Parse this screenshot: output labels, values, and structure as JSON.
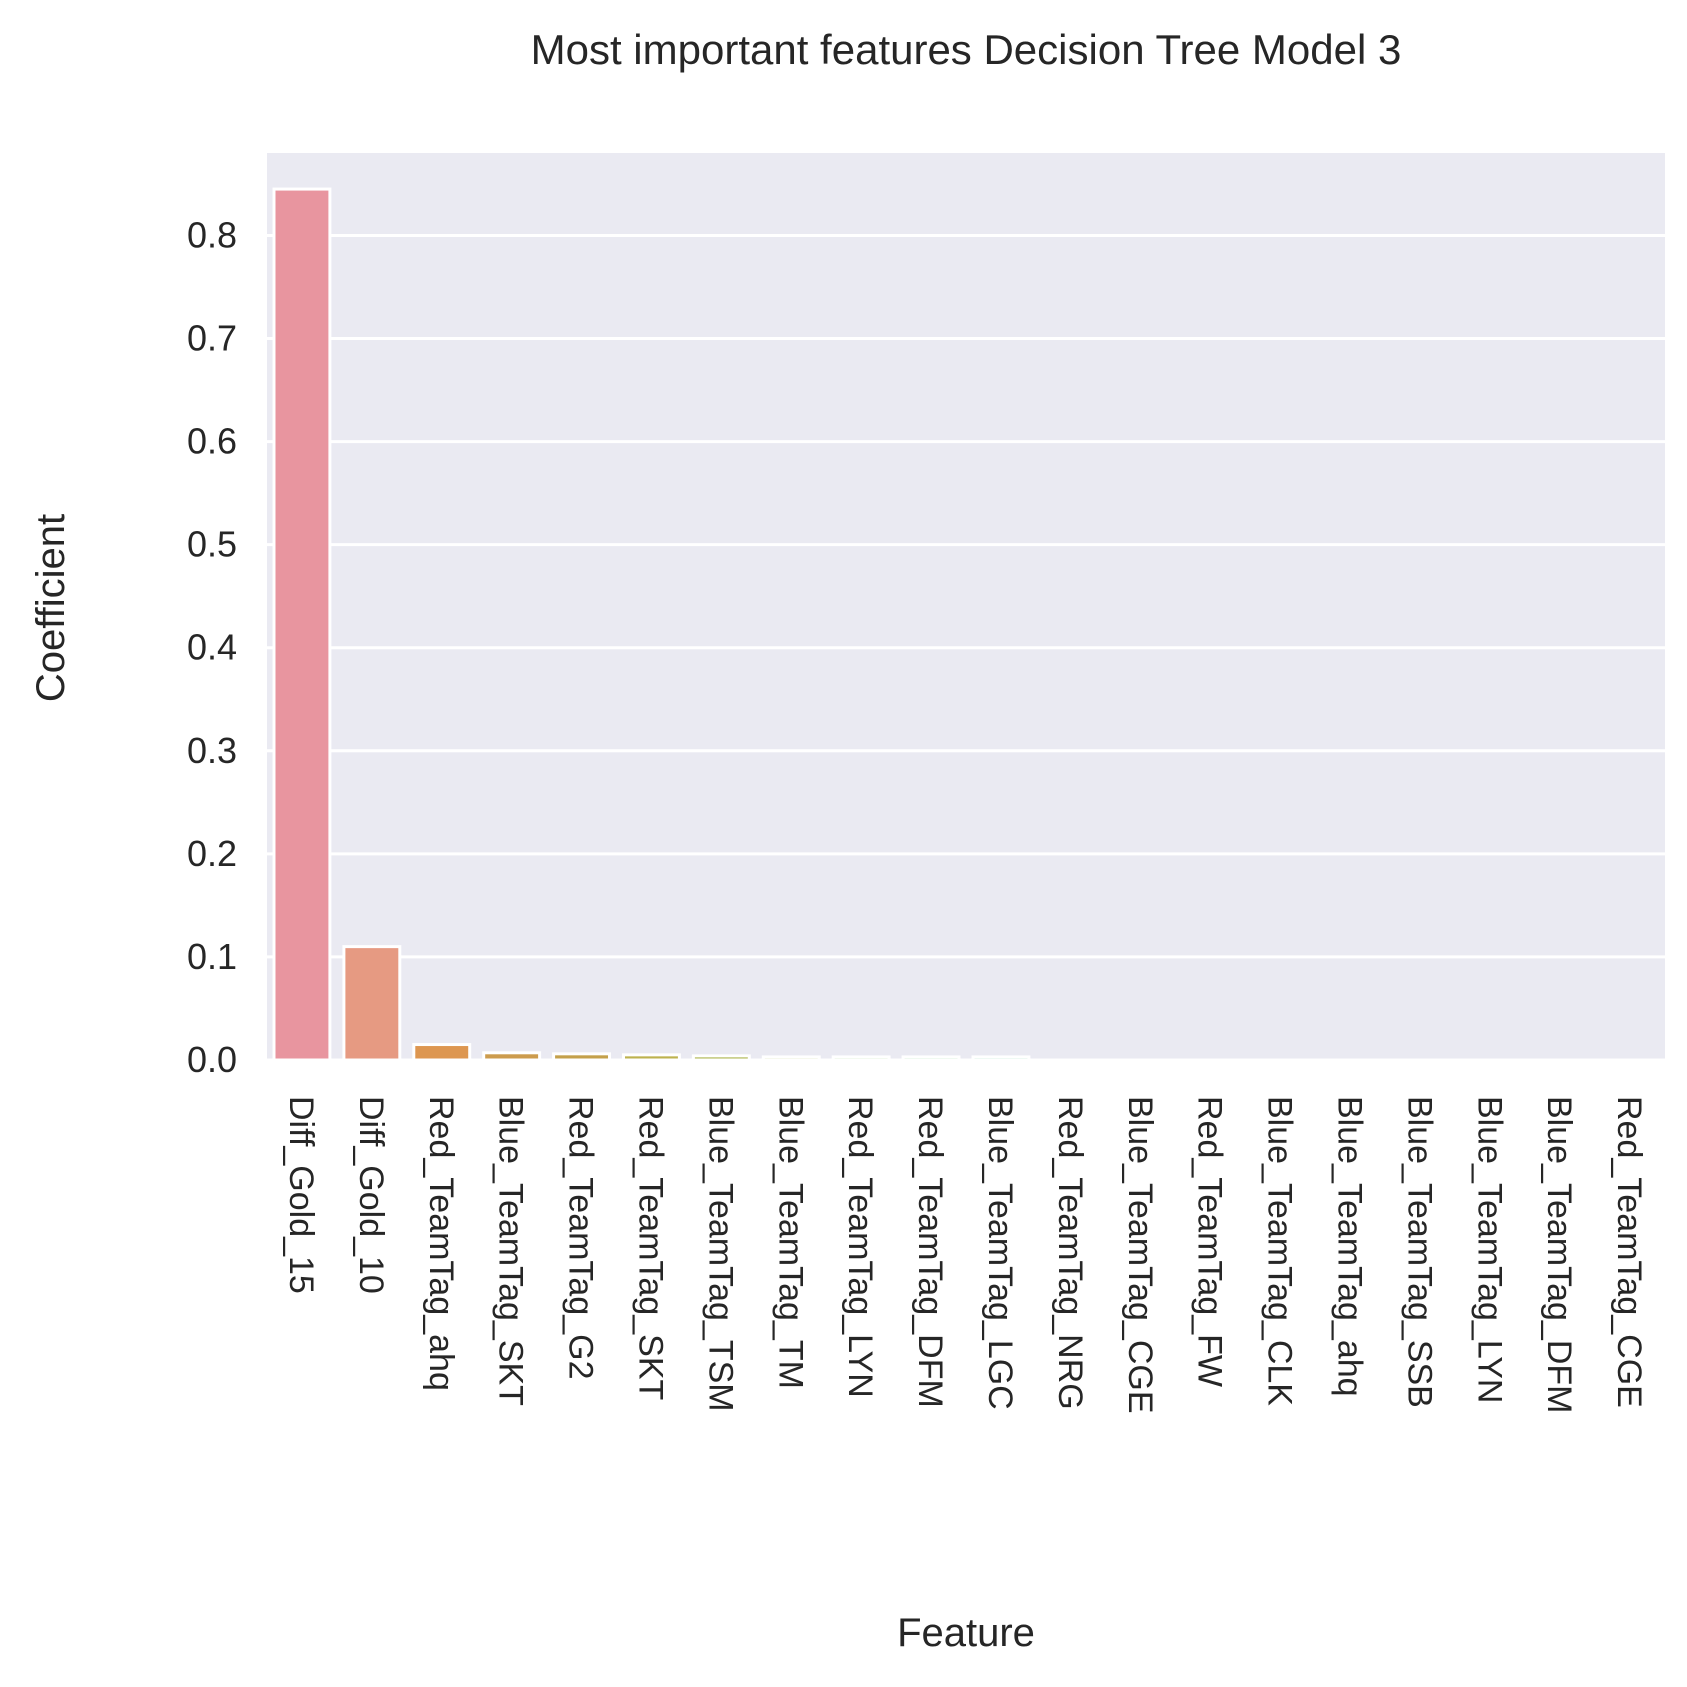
{
  "chart_data": {
    "type": "bar",
    "title": "Most important features Decision Tree Model 3",
    "xlabel": "Feature",
    "ylabel": "Coefficient",
    "ylim": [
      0,
      0.88
    ],
    "yticks": [
      "0.0",
      "0.1",
      "0.2",
      "0.3",
      "0.4",
      "0.5",
      "0.6",
      "0.7",
      "0.8"
    ],
    "grid": true,
    "background": "#eaeaf2",
    "categories": [
      "Diff_Gold_15",
      "Diff_Gold_10",
      "Red_TeamTag_ahq",
      "Blue_TeamTag_SKT",
      "Red_TeamTag_G2",
      "Red_TeamTag_SKT",
      "Blue_TeamTag_TSM",
      "Blue_TeamTag_TM",
      "Red_TeamTag_LYN",
      "Red_TeamTag_DFM",
      "Blue_TeamTag_LGC",
      "Red_TeamTag_NRG",
      "Blue_TeamTag_CGE",
      "Red_TeamTag_FW",
      "Blue_TeamTag_CLK",
      "Blue_TeamTag_ahq",
      "Blue_TeamTag_SSB",
      "Blue_TeamTag_LYN",
      "Blue_TeamTag_DFM",
      "Red_TeamTag_CGE"
    ],
    "values": [
      0.845,
      0.11,
      0.015,
      0.007,
      0.006,
      0.005,
      0.004,
      0.003,
      0.003,
      0.003,
      0.003,
      0.0,
      0.0,
      0.0,
      0.0,
      0.0,
      0.0,
      0.0,
      0.0,
      0.0
    ],
    "colors": [
      "#e8959f",
      "#e69a82",
      "#dd9650",
      "#cc9b4d",
      "#c4a04b",
      "#bdb24e",
      "#aeb54e",
      "#9dba4c",
      "#7fbb57",
      "#5fbf6a",
      "#54bf8c",
      "#55bea6",
      "#57bcb6",
      "#5ab9c7",
      "#60b3d9",
      "#86a8e6",
      "#a79bea",
      "#c68ee8",
      "#df86d8",
      "#e98cc0"
    ]
  }
}
